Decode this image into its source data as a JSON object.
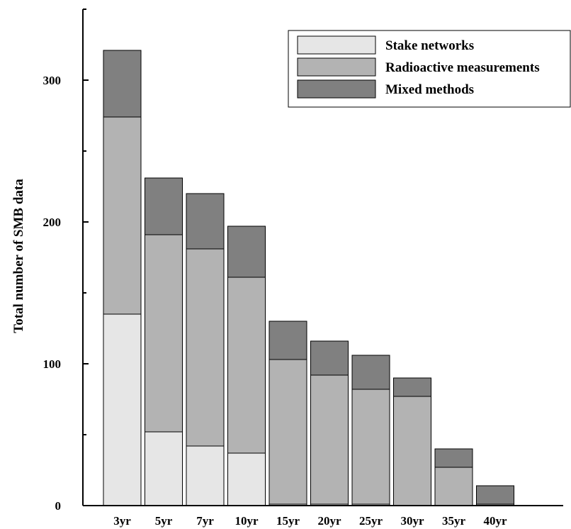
{
  "chart_data": {
    "type": "bar",
    "stacked": true,
    "title": "",
    "xlabel": "",
    "ylabel": "Total number of SMB data",
    "ylim": [
      0,
      350
    ],
    "yticks_major": [
      0,
      100,
      200,
      300
    ],
    "yticks_minor": [
      50,
      150,
      250,
      350
    ],
    "grid": false,
    "legend_position": "top-right",
    "categories": [
      "3yr",
      "5yr",
      "7yr",
      "10yr",
      "15yr",
      "20yr",
      "25yr",
      "30yr",
      "35yr",
      "40yr"
    ],
    "series": [
      {
        "name": "Stake networks",
        "color": "#e6e6e6",
        "values": [
          135,
          52,
          42,
          37,
          1,
          1,
          1,
          0,
          0,
          0
        ]
      },
      {
        "name": "Radioactive measurements",
        "color": "#b3b3b3",
        "values": [
          139,
          139,
          139,
          124,
          102,
          91,
          81,
          77,
          27,
          1
        ]
      },
      {
        "name": "Mixed methods",
        "color": "#808080",
        "values": [
          47,
          40,
          39,
          36,
          27,
          24,
          24,
          13,
          13,
          13
        ]
      }
    ]
  }
}
